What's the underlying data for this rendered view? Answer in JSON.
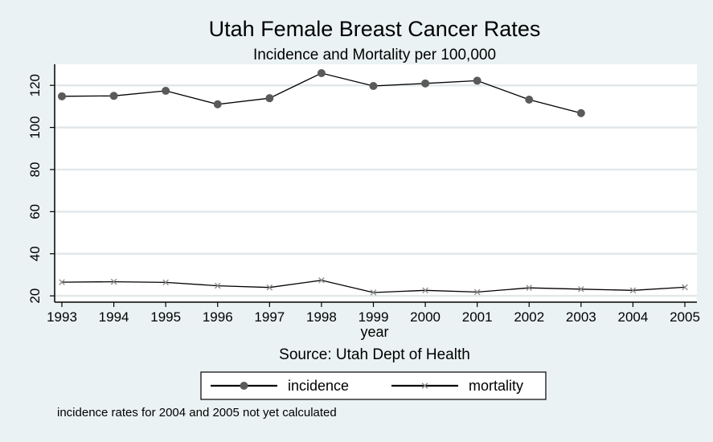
{
  "chart_data": {
    "type": "line",
    "title": "Utah Female Breast Cancer Rates",
    "subtitle": "Incidence and Mortality per 100,000",
    "xlabel": "year",
    "ylabel": "",
    "caption": "Source: Utah Dept of Health",
    "note": "incidence rates for 2004 and 2005 not yet calculated",
    "x": [
      1993,
      1994,
      1995,
      1996,
      1997,
      1998,
      1999,
      2000,
      2001,
      2002,
      2003,
      2004,
      2005
    ],
    "xlim": [
      1993,
      2005
    ],
    "ylim": [
      17,
      130
    ],
    "yticks": [
      20,
      40,
      60,
      80,
      100,
      120
    ],
    "grid": true,
    "legend_position": "bottom",
    "series": [
      {
        "name": "incidence",
        "marker": "circle",
        "color": "#000000",
        "marker_color": "#5a5a5a",
        "values": [
          114.8,
          115.0,
          117.4,
          111.0,
          113.9,
          125.8,
          119.7,
          120.9,
          122.2,
          113.2,
          106.8,
          null,
          null
        ]
      },
      {
        "name": "mortality",
        "marker": "x",
        "color": "#000000",
        "marker_color": "#8c8c8c",
        "values": [
          26.5,
          26.7,
          26.4,
          24.8,
          24.0,
          27.4,
          21.6,
          22.6,
          21.8,
          23.8,
          23.2,
          22.6,
          24.1
        ]
      }
    ]
  }
}
